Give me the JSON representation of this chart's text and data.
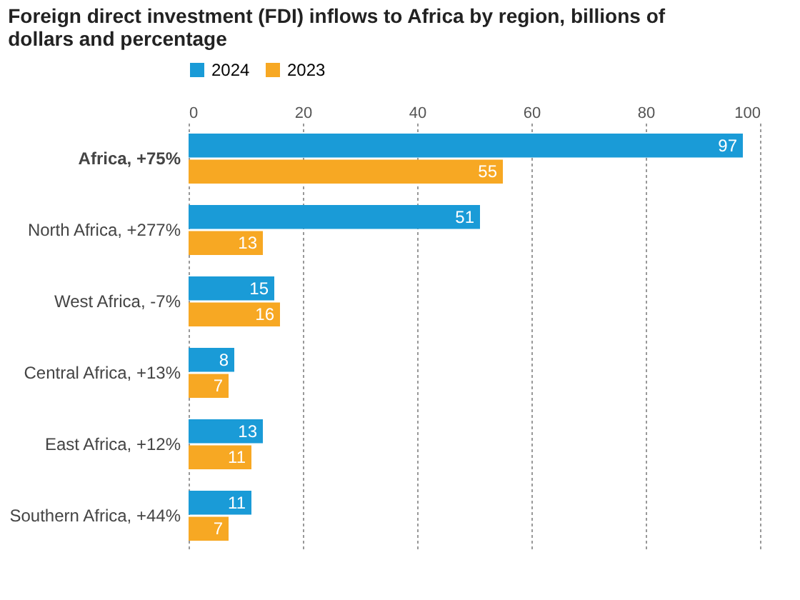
{
  "chart_data": {
    "type": "bar",
    "orientation": "horizontal",
    "title": "Foreign direct investment (FDI) inflows to Africa by region, billions of dollars and percentage",
    "categories": [
      "Africa, +75%",
      "North Africa, +277%",
      "West Africa, -7%",
      "Central Africa, +13%",
      "East Africa, +12%",
      "Southern Africa, +44%"
    ],
    "series": [
      {
        "name": "2024",
        "color": "#1a9bd7",
        "values": [
          97,
          51,
          15,
          8,
          13,
          11
        ]
      },
      {
        "name": "2023",
        "color": "#f7a823",
        "values": [
          55,
          13,
          16,
          7,
          11,
          7
        ]
      }
    ],
    "xlim": [
      0,
      100
    ],
    "xticks": [
      0,
      20,
      40,
      60,
      80,
      100
    ],
    "grid": "x",
    "legend": "top left",
    "data_labels": true
  }
}
